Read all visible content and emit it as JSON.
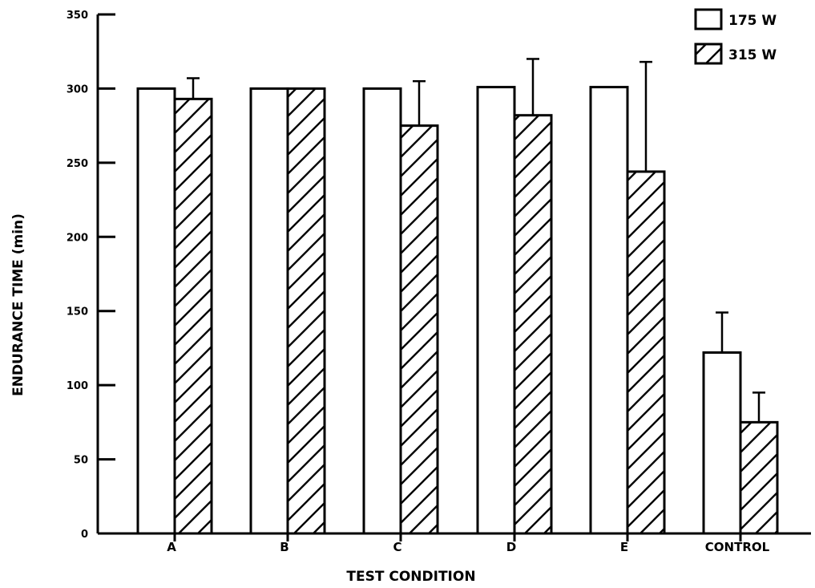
{
  "chart_data": {
    "type": "bar",
    "categories": [
      "A",
      "B",
      "C",
      "D",
      "E",
      "CONTROL"
    ],
    "series": [
      {
        "name": "175 W",
        "values": [
          300,
          300,
          300,
          301,
          301,
          122
        ],
        "error": [
          0,
          0,
          0,
          0,
          0,
          27
        ],
        "pattern": "none"
      },
      {
        "name": "315 W",
        "values": [
          293,
          300,
          275,
          282,
          244,
          75
        ],
        "error": [
          14,
          0,
          30,
          38,
          74,
          20
        ],
        "pattern": "hatch"
      }
    ],
    "title": "",
    "xlabel": "TEST CONDITION",
    "ylabel": "ENDURANCE TIME (min)",
    "ylim": [
      0,
      350
    ],
    "yticks": [
      0,
      50,
      100,
      150,
      200,
      250,
      300,
      350
    ],
    "grid": false,
    "legend_position": "top-right"
  }
}
